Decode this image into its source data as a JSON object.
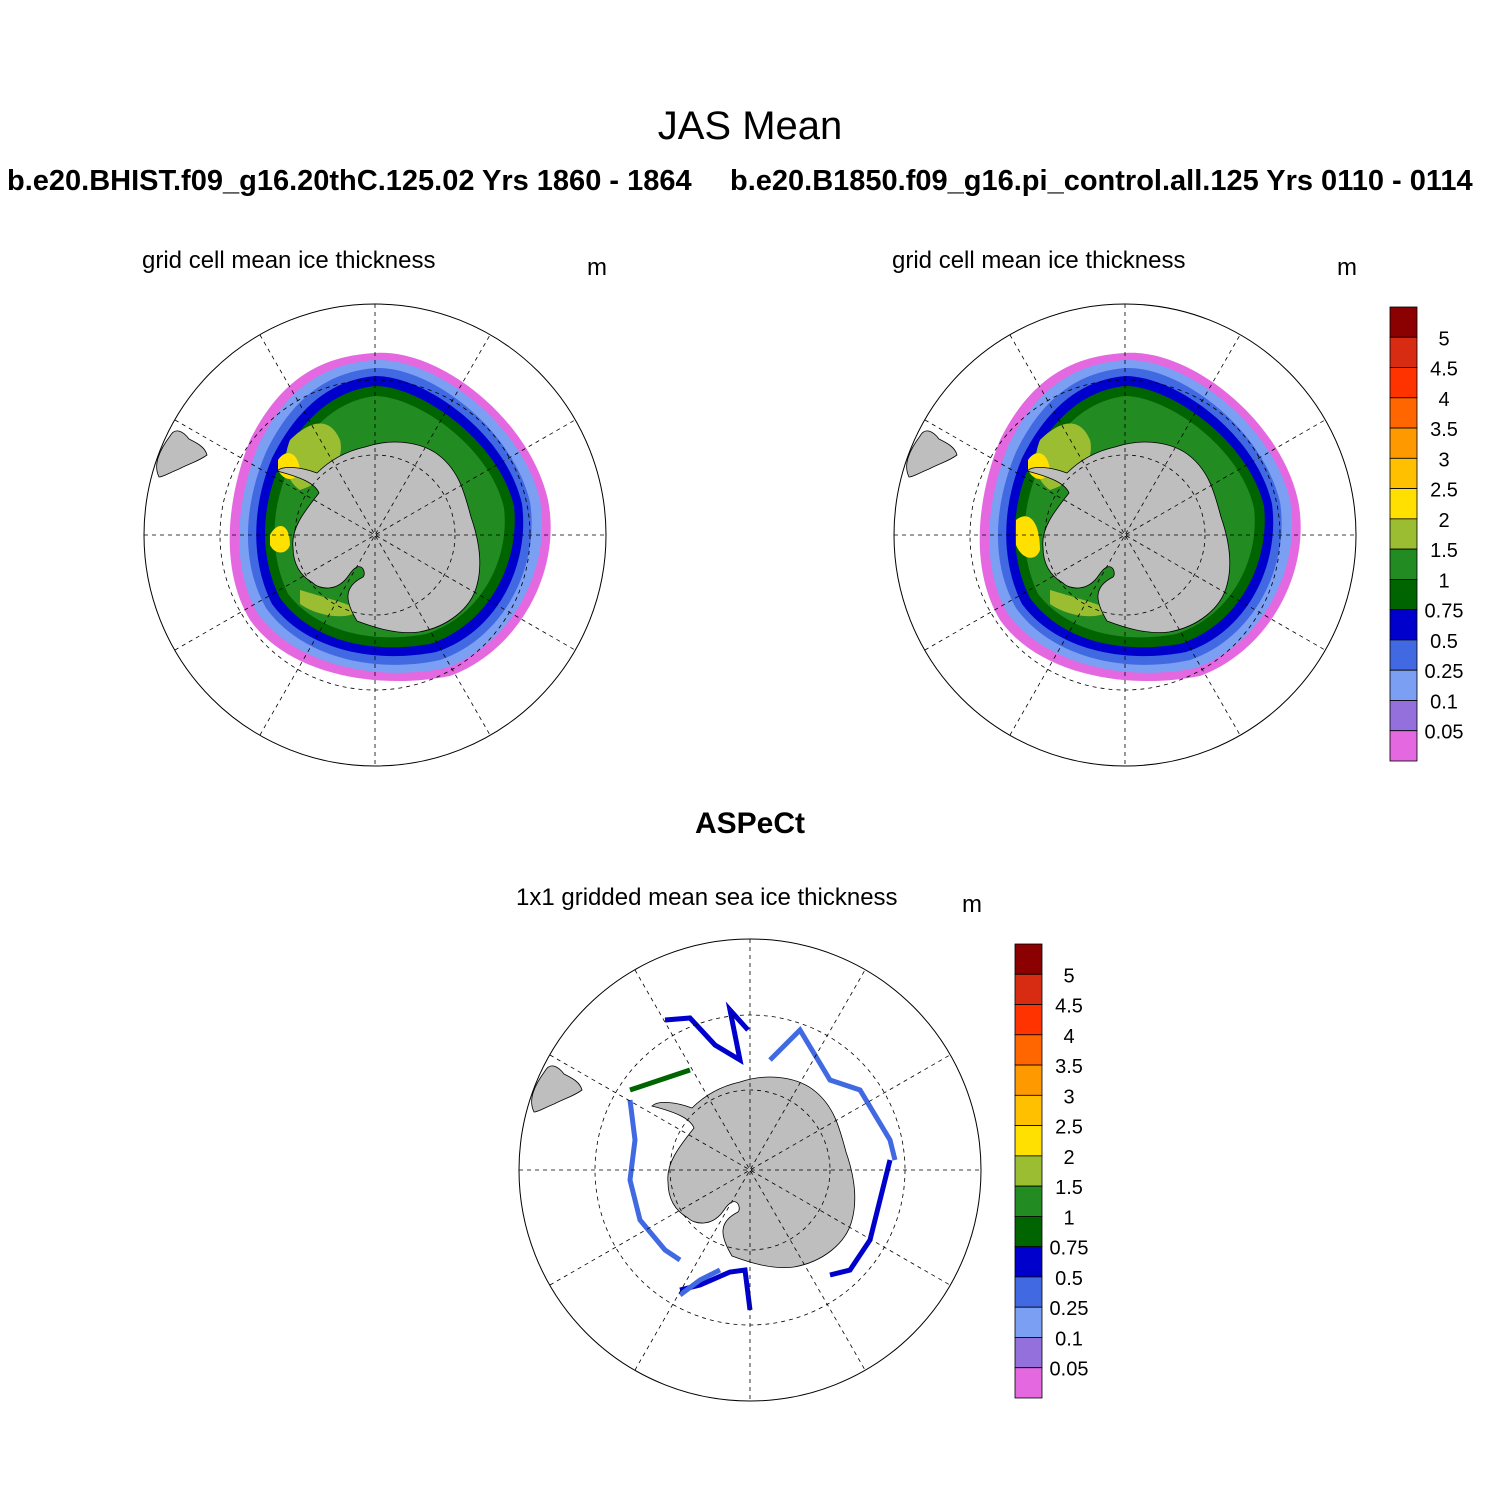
{
  "main_title": "JAS Mean",
  "panels": [
    {
      "case": "b.e20.BHIST.f09_g16.20thC.125.02  Yrs 1860 - 1864",
      "title": "grid cell mean ice thickness",
      "units": "m"
    },
    {
      "case": "b.e20.B1850.f09_g16.pi_control.all.125  Yrs 0110 - 0114",
      "title": "grid cell mean ice thickness",
      "units": "m"
    }
  ],
  "obs": {
    "name": "ASPeCt",
    "title": "1x1 gridded mean sea ice thickness",
    "units": "m"
  },
  "colorbar": {
    "levels": [
      "5",
      "4.5",
      "4",
      "3.5",
      "3",
      "2.5",
      "2",
      "1.5",
      "1",
      "0.75",
      "0.5",
      "0.25",
      "0.1",
      "0.05"
    ],
    "colors": [
      "#8b0000",
      "#d72b12",
      "#ff3300",
      "#ff6600",
      "#ff9900",
      "#ffc000",
      "#ffe000",
      "#9bbd32",
      "#228b22",
      "#006400",
      "#0000cd",
      "#4169e1",
      "#7b9ff2",
      "#9370db",
      "#e469e0"
    ]
  },
  "land_color": "#bebebe"
}
